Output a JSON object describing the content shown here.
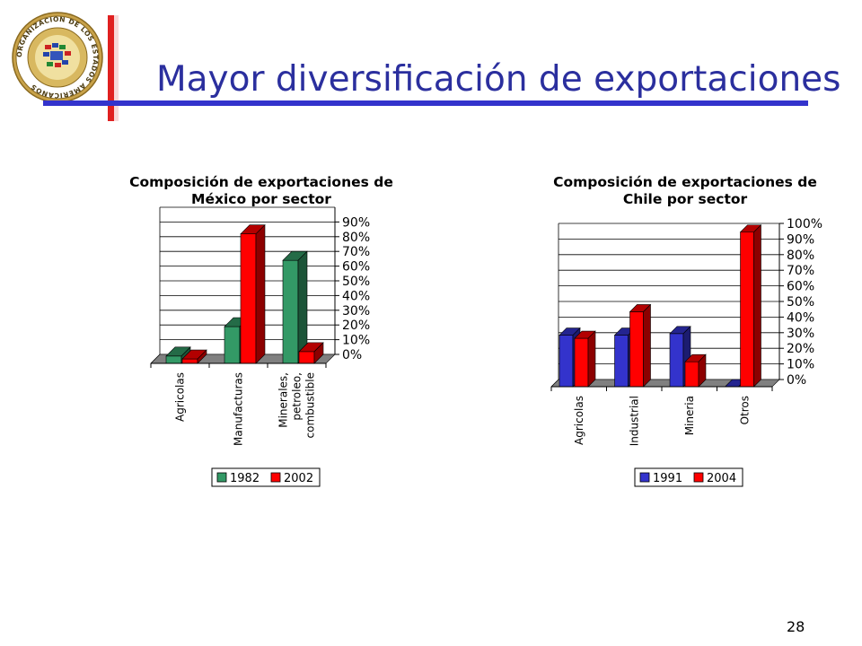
{
  "slide": {
    "title": "Mayor diversificación de exportaciones",
    "page_number": "28",
    "logo_text": "ORGANIZACION DE LOS ESTADOS AMERICANOS"
  },
  "colors": {
    "title": "#2b2f9e",
    "accent_red": "#e02020",
    "accent_blue": "#3333cc"
  },
  "chart_data": [
    {
      "type": "bar",
      "title": "Composición de exportaciones de México por sector",
      "title_lines": [
        "Composición de exportaciones de",
        "México por sector"
      ],
      "categories": [
        "Agricolas",
        "Manufacturas",
        "Minerales, petroleo, combustible"
      ],
      "category_lines": [
        [
          "Agricolas"
        ],
        [
          "Manufacturas"
        ],
        [
          "Minerales,",
          "petroleo,",
          "combustible"
        ]
      ],
      "series": [
        {
          "name": "1982",
          "values": [
            5,
            25,
            70
          ],
          "color": "#339966"
        },
        {
          "name": "2002",
          "values": [
            3,
            88,
            8
          ],
          "color": "#ff0000"
        }
      ],
      "ylim": [
        0,
        100
      ],
      "yticks": [
        "0%",
        "10%",
        "20%",
        "30%",
        "40%",
        "50%",
        "60%",
        "70%",
        "80%",
        "90%"
      ],
      "grid": true,
      "legend": "bottom"
    },
    {
      "type": "bar",
      "title": "Composición de exportaciones de Chile por sector",
      "title_lines": [
        "Composición de exportaciones de",
        "Chile por sector"
      ],
      "categories": [
        "Agricolas",
        "Industrial",
        "Mineria",
        "Otros"
      ],
      "category_lines": [
        [
          "Agricolas"
        ],
        [
          "Industrial"
        ],
        [
          "Mineria"
        ],
        [
          "Otros"
        ]
      ],
      "series": [
        {
          "name": "1991",
          "values": [
            33,
            33,
            34,
            0
          ],
          "color": "#3333cc"
        },
        {
          "name": "2004",
          "values": [
            31,
            48,
            16,
            99
          ],
          "color": "#ff0000"
        }
      ],
      "ylim": [
        0,
        100
      ],
      "yticks": [
        "0%",
        "10%",
        "20%",
        "30%",
        "40%",
        "50%",
        "60%",
        "70%",
        "80%",
        "90%",
        "100%"
      ],
      "grid": true,
      "legend": "bottom"
    }
  ]
}
